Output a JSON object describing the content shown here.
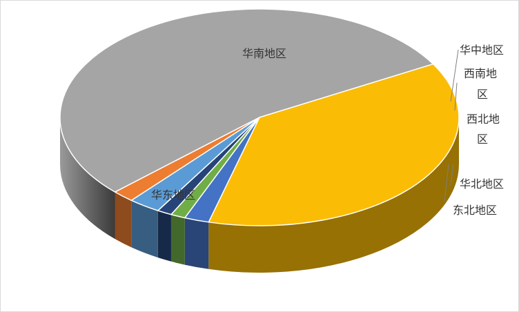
{
  "chart_data": {
    "type": "pie",
    "style": "3d",
    "title": "",
    "slices": [
      {
        "label": "华南地区",
        "value": 37.3,
        "color": "#FBBC05"
      },
      {
        "label": "华中地区",
        "value": 2.0,
        "color": "#4472C4"
      },
      {
        "label": "西南地区",
        "value": 1.2,
        "color": "#70AD47"
      },
      {
        "label": "西北地区",
        "value": 1.2,
        "color": "#264478"
      },
      {
        "label": "华北地区",
        "value": 2.6,
        "color": "#5B9BD5"
      },
      {
        "label": "东北地区",
        "value": 1.8,
        "color": "#ED7D31"
      },
      {
        "label": "华东地区",
        "value": 53.9,
        "color": "#A5A5A5"
      }
    ],
    "legend": "none",
    "labels_placement": "mixed-inside-outside"
  }
}
